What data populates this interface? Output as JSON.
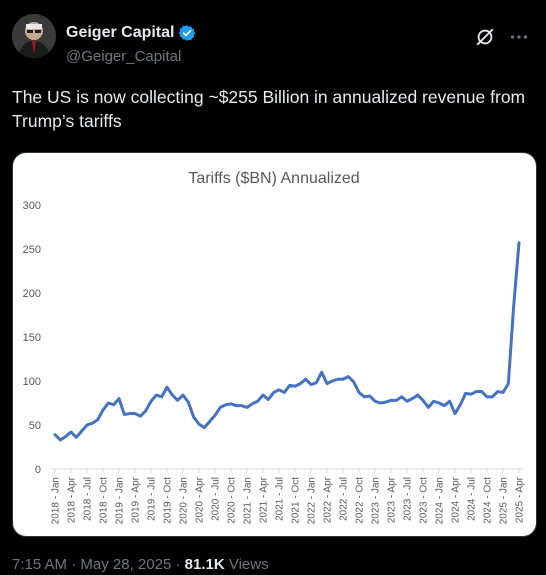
{
  "author": {
    "display_name": "Geiger Capital",
    "handle": "@Geiger_Capital",
    "verified_color": "#1d9bf0"
  },
  "tweet": {
    "text": "The US is now collecting ~$255 Billion in annualized revenue from Trump’s tariffs"
  },
  "meta": {
    "time": "7:15 AM",
    "separator": " · ",
    "date": "May 28, 2025",
    "views_count": "81.1K",
    "views_label": "Views"
  },
  "icons": {
    "grok": "grok-slash-icon",
    "more": "more-dots-icon",
    "verified": "verified-badge-icon"
  },
  "chart_data": {
    "type": "line",
    "title": "Tariffs ($BN) Annualized",
    "xlabel": "",
    "ylabel": "",
    "ylim": [
      0,
      300
    ],
    "yticks": [
      0,
      50,
      100,
      150,
      200,
      250,
      300
    ],
    "grid": false,
    "legend": "none",
    "line_color": "#4472c4",
    "x_tick_labels": [
      "2018 - Jan",
      "2018 - Apr",
      "2018 - Jul",
      "2018 - Oct",
      "2019 - Jan",
      "2019 - Apr",
      "2019 - Jul",
      "2019 - Oct",
      "2020 - Jan",
      "2020 - Apr",
      "2020 - Jul",
      "2020 - Oct",
      "2021 - Jan",
      "2021 - Apr",
      "2021 - Jul",
      "2021 - Oct",
      "2022 - Jan",
      "2022 - Apr",
      "2022 - Jul",
      "2022 - Oct",
      "2023 - Jan",
      "2023 - Apr",
      "2023 - Jul",
      "2023 - Oct",
      "2024 - Jan",
      "2024 - Apr",
      "2024 - Jul",
      "2024 - Oct",
      "2025 - Jan",
      "2025 - Apr"
    ],
    "series": [
      {
        "values": [
          39,
          33,
          37,
          42,
          36,
          43,
          50,
          52,
          56,
          67,
          75,
          73,
          80,
          62,
          63,
          63,
          60,
          66,
          77,
          84,
          82,
          93,
          84,
          78,
          84,
          76,
          59,
          51,
          47,
          54,
          61,
          70,
          73,
          74,
          72,
          72,
          70,
          74,
          77,
          84,
          79,
          87,
          90,
          87,
          95,
          94,
          97,
          102,
          96,
          98,
          110,
          97,
          100,
          102,
          102,
          105,
          99,
          87,
          82,
          83,
          77,
          75,
          76,
          78,
          78,
          82,
          77,
          80,
          84,
          78,
          70,
          77,
          75,
          72,
          77,
          63,
          73,
          86,
          85,
          88,
          88,
          82,
          82,
          88,
          87,
          97,
          185,
          257
        ]
      }
    ]
  }
}
